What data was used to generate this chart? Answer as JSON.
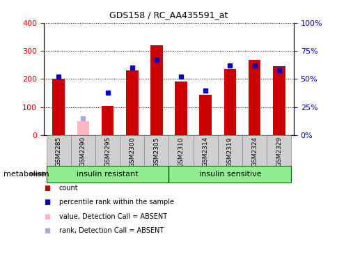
{
  "title": "GDS158 / RC_AA435591_at",
  "samples": [
    "GSM2285",
    "GSM2290",
    "GSM2295",
    "GSM2300",
    "GSM2305",
    "GSM2310",
    "GSM2314",
    "GSM2319",
    "GSM2324",
    "GSM2329"
  ],
  "count_values": [
    200,
    null,
    105,
    230,
    320,
    192,
    145,
    235,
    268,
    246
  ],
  "count_absent": [
    null,
    50,
    null,
    null,
    null,
    null,
    null,
    null,
    null,
    null
  ],
  "rank_values": [
    52,
    null,
    38,
    60,
    67,
    52,
    40,
    62,
    62,
    58
  ],
  "rank_absent": [
    null,
    15,
    null,
    null,
    null,
    null,
    null,
    null,
    null,
    null
  ],
  "ylim_left": [
    0,
    400
  ],
  "ylim_right": [
    0,
    100
  ],
  "yticks_left": [
    0,
    100,
    200,
    300,
    400
  ],
  "ytick_labels_left": [
    "0",
    "100",
    "200",
    "300",
    "400"
  ],
  "yticks_right": [
    0,
    25,
    50,
    75,
    100
  ],
  "ytick_labels_right": [
    "0%",
    "25%",
    "50%",
    "75%",
    "100%"
  ],
  "bar_width": 0.5,
  "count_color": "#cc0000",
  "rank_color": "#0000cc",
  "absent_count_color": "#ffb6c1",
  "absent_rank_color": "#aaaadd",
  "background_color": "#ffffff",
  "ylabel_left_color": "#cc0000",
  "ylabel_right_color": "#0000cc",
  "legend_items": [
    {
      "label": "count",
      "color": "#cc0000"
    },
    {
      "label": "percentile rank within the sample",
      "color": "#0000cc"
    },
    {
      "label": "value, Detection Call = ABSENT",
      "color": "#ffb6c1"
    },
    {
      "label": "rank, Detection Call = ABSENT",
      "color": "#aaaadd"
    }
  ],
  "metabolism_label": "metabolism",
  "group_data": [
    {
      "xmin": 0,
      "xmax": 5,
      "label": "insulin resistant",
      "color": "#90EE90"
    },
    {
      "xmin": 5,
      "xmax": 10,
      "label": "insulin sensitive",
      "color": "#90EE90"
    }
  ],
  "n_samples": 10,
  "n_insulin_resistant": 5
}
